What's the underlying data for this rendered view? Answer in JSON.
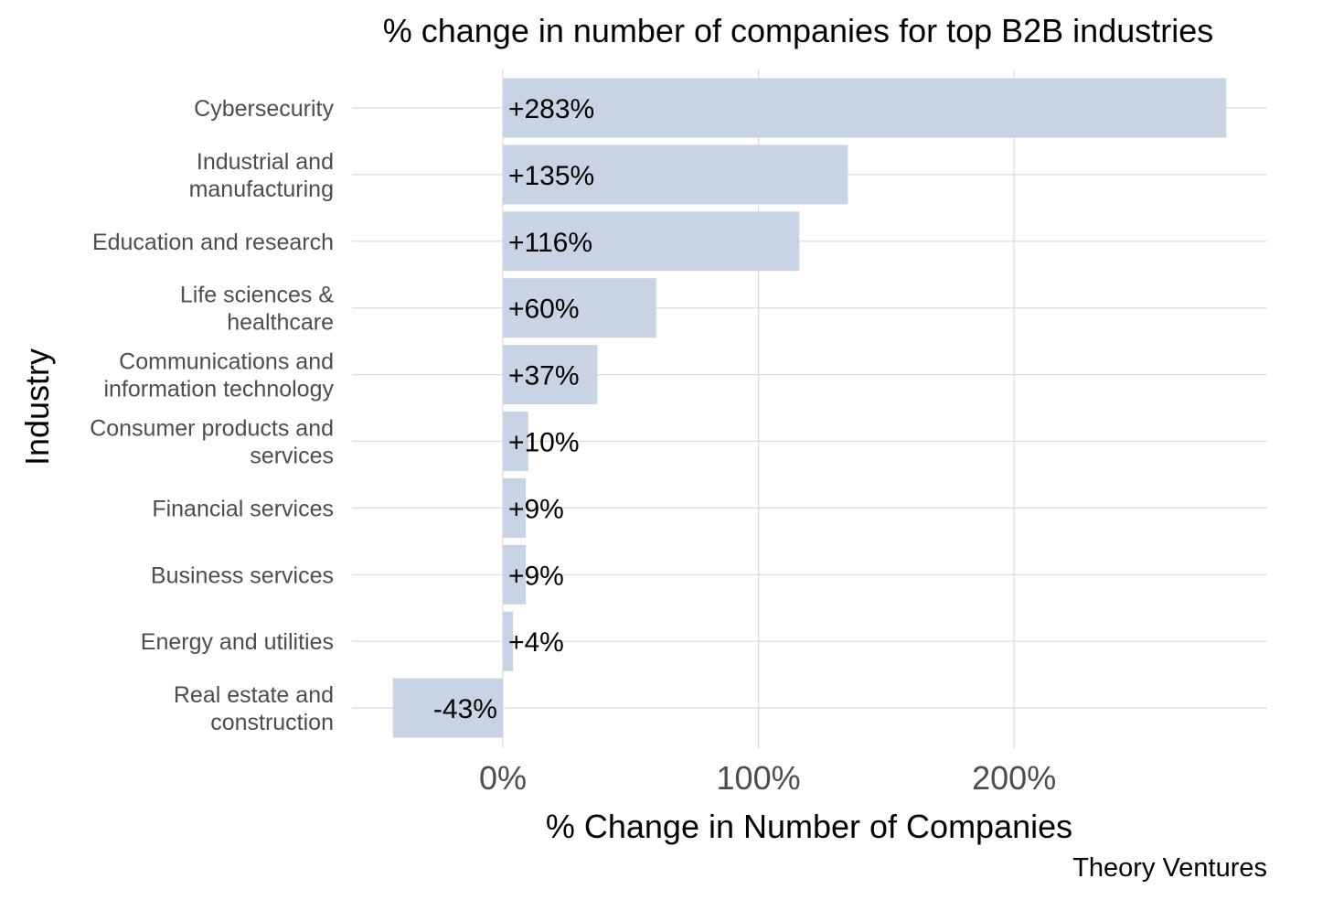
{
  "chart_data": {
    "type": "bar",
    "orientation": "horizontal",
    "title": "% change in number of companies for top B2B industries",
    "xlabel": "% Change in Number of Companies",
    "ylabel": "Industry",
    "caption": "Theory Ventures",
    "categories": [
      "Cybersecurity",
      "Industrial and manufacturing",
      "Education and research",
      "Life sciences & healthcare",
      "Communications and information technology",
      "Consumer products and services",
      "Financial services",
      "Business services",
      "Energy and utilities",
      "Real estate and construction"
    ],
    "category_lines": [
      [
        "Cybersecurity"
      ],
      [
        "Industrial and",
        "manufacturing"
      ],
      [
        "Education and research"
      ],
      [
        "Life sciences &",
        "healthcare"
      ],
      [
        "Communications and",
        "information technology"
      ],
      [
        "Consumer products and",
        "services"
      ],
      [
        "Financial services"
      ],
      [
        "Business services"
      ],
      [
        "Energy and utilities"
      ],
      [
        "Real estate and",
        "construction"
      ]
    ],
    "values": [
      283,
      135,
      116,
      60,
      37,
      10,
      9,
      9,
      4,
      -43
    ],
    "data_labels": [
      "+283%",
      "+135%",
      "+116%",
      "+60%",
      "+37%",
      "+10%",
      "+9%",
      "+9%",
      "+4%",
      "-43%"
    ],
    "xlim": [
      -59,
      299
    ],
    "xticks": [
      0,
      100,
      200
    ],
    "xtick_labels": [
      "0%",
      "100%",
      "200%"
    ],
    "grid": true,
    "legend": "none",
    "bar_color": "#c8d4e3",
    "grid_color": "#d9d9d9"
  }
}
